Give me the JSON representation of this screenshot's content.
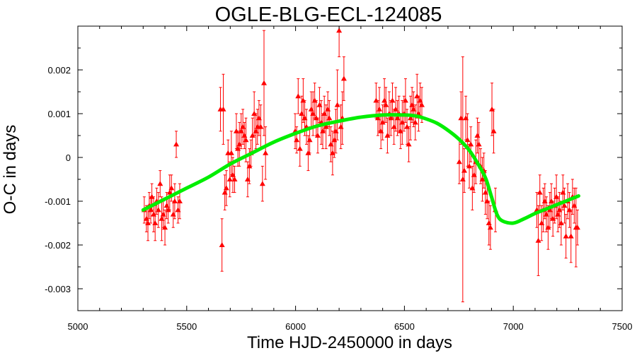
{
  "chart_data": {
    "type": "scatter",
    "title": "OGLE-BLG-ECL-124085",
    "xlabel": "Time HJD-2450000 in days",
    "ylabel": "O-C in days",
    "xlim": [
      5000,
      7500
    ],
    "ylim": [
      -0.0035,
      0.003
    ],
    "xticks": [
      5000,
      5500,
      6000,
      6500,
      7000,
      7500
    ],
    "yticks": [
      -0.003,
      -0.002,
      -0.001,
      0,
      0.001,
      0.002
    ],
    "ytick_labels": [
      "-0.003",
      "-0.002",
      "-0.001",
      "0",
      "0.001",
      "0.002"
    ],
    "grid": false,
    "colors": {
      "points": "#ff0000",
      "fit": "#00ee00",
      "axes": "#000000"
    },
    "series": [
      {
        "type": "scatter-errorbars",
        "marker": "triangle",
        "x": [
          5305,
          5315,
          5322,
          5328,
          5335,
          5340,
          5348,
          5355,
          5362,
          5370,
          5378,
          5385,
          5392,
          5400,
          5408,
          5415,
          5422,
          5430,
          5438,
          5445,
          5452,
          5460,
          5468,
          5655,
          5662,
          5668,
          5675,
          5682,
          5690,
          5698,
          5705,
          5712,
          5720,
          5728,
          5735,
          5742,
          5750,
          5758,
          5765,
          5772,
          5780,
          5788,
          5795,
          5802,
          5810,
          5818,
          5825,
          5832,
          5840,
          5848,
          5855,
          5862,
          5998,
          6005,
          6012,
          6020,
          6028,
          6035,
          6042,
          6050,
          6058,
          6065,
          6072,
          6080,
          6088,
          6095,
          6102,
          6110,
          6118,
          6125,
          6132,
          6140,
          6148,
          6155,
          6162,
          6170,
          6178,
          6185,
          6192,
          6200,
          6208,
          6215,
          6222,
          6370,
          6378,
          6385,
          6392,
          6400,
          6408,
          6415,
          6422,
          6430,
          6438,
          6445,
          6452,
          6460,
          6468,
          6475,
          6482,
          6490,
          6498,
          6505,
          6512,
          6520,
          6528,
          6535,
          6542,
          6550,
          6558,
          6565,
          6572,
          6580,
          6752,
          6760,
          6768,
          6775,
          6782,
          6790,
          6798,
          6805,
          6812,
          6820,
          6828,
          6835,
          6842,
          6850,
          6858,
          6865,
          6872,
          6880,
          6888,
          6895,
          6902,
          6910,
          6918,
          7108,
          7115,
          7122,
          7130,
          7138,
          7145,
          7152,
          7160,
          7168,
          7175,
          7182,
          7190,
          7198,
          7205,
          7212,
          7220,
          7228,
          7235,
          7242,
          7250,
          7258,
          7265,
          7272,
          7280,
          7288,
          7295
        ],
        "y": [
          -0.0012,
          -0.0014,
          -0.0015,
          -0.0011,
          -0.0012,
          -0.0009,
          -0.0013,
          -0.0015,
          -0.001,
          -0.0012,
          -0.0006,
          -0.0014,
          -0.0013,
          -0.0016,
          -0.0011,
          -0.0012,
          -0.0008,
          -0.0007,
          -0.0013,
          -0.001,
          0.0003,
          -0.0012,
          -0.001,
          0.0011,
          -0.002,
          0.0011,
          -0.0008,
          -0.0007,
          0.0001,
          -0.0005,
          0.0001,
          -0.0004,
          -0.0005,
          0.0006,
          0.0002,
          0.0003,
          0.0006,
          0.0007,
          0.0005,
          0.0004,
          -0.0005,
          -0.0002,
          0.0001,
          0.0005,
          0.001,
          0.0006,
          0.0007,
          0.0009,
          0.0007,
          -0.0006,
          0.0017,
          0.0001,
          0.0006,
          0.0004,
          0.0014,
          0.0002,
          0.001,
          0.0013,
          0.0009,
          0.0007,
          0.0001,
          0.0004,
          0.0011,
          0.001,
          0.0013,
          0.0009,
          0.0005,
          0.0012,
          0.0008,
          0.0006,
          0.001,
          0.0007,
          0.0011,
          0.0009,
          0.0003,
          0.0001,
          0.0004,
          0.0006,
          0.0012,
          0.0029,
          0.0007,
          0.0009,
          0.0018,
          0.0013,
          0.0009,
          0.0011,
          0.0006,
          0.0008,
          0.0013,
          0.0012,
          0.0005,
          0.001,
          0.0009,
          0.0013,
          0.0007,
          0.0011,
          0.0009,
          0.001,
          0.0006,
          0.0008,
          0.001,
          0.0013,
          0.0007,
          0.0003,
          0.0009,
          0.0012,
          0.0011,
          0.0008,
          0.0014,
          0.001,
          0.0013,
          0.0012,
          -0.0001,
          0.0009,
          -0.0005,
          -0.0003,
          0.0009,
          0.0004,
          -0.0002,
          0.0003,
          -0.0007,
          -0.0004,
          -0.0001,
          0.0005,
          0.0003,
          -0.0002,
          -0.0005,
          -0.0003,
          -0.0008,
          -0.001,
          -0.0015,
          -0.0016,
          0.0011,
          0.0006,
          -0.0012,
          -0.0012,
          -0.0019,
          -0.0008,
          -0.0015,
          -0.0012,
          -0.001,
          -0.0013,
          -0.0016,
          -0.0012,
          -0.001,
          -0.0014,
          -0.0011,
          -0.0009,
          -0.0013,
          -0.0012,
          -0.0015,
          -0.0008,
          -0.0011,
          -0.0018,
          -0.001,
          -0.0012,
          -0.0018,
          -0.0009,
          -0.0011,
          -0.0016,
          -0.0016
        ],
        "yerr": [
          0.0003,
          0.0003,
          0.0004,
          0.0003,
          0.0003,
          0.0003,
          0.0004,
          0.0004,
          0.0003,
          0.0004,
          0.0003,
          0.0005,
          0.0003,
          0.0004,
          0.0003,
          0.0003,
          0.0004,
          0.0003,
          0.0003,
          0.0004,
          0.0003,
          0.0003,
          0.0004,
          0.0005,
          0.0006,
          0.0008,
          0.0004,
          0.0004,
          0.0003,
          0.0004,
          0.0005,
          0.0004,
          0.0003,
          0.0004,
          0.0004,
          0.0005,
          0.0004,
          0.0004,
          0.0003,
          0.0005,
          0.0004,
          0.0004,
          0.0003,
          0.0004,
          0.0005,
          0.0004,
          0.0004,
          0.0004,
          0.0005,
          0.0004,
          0.0012,
          0.0006,
          0.0004,
          0.0003,
          0.0004,
          0.0004,
          0.0004,
          0.0005,
          0.0004,
          0.0004,
          0.0004,
          0.0003,
          0.0004,
          0.0005,
          0.0004,
          0.0004,
          0.0004,
          0.0004,
          0.0005,
          0.0004,
          0.0004,
          0.0005,
          0.0004,
          0.0004,
          0.0004,
          0.0005,
          0.0004,
          0.0005,
          0.0008,
          0.0006,
          0.0005,
          0.0006,
          0.0005,
          0.0004,
          0.0004,
          0.0005,
          0.0004,
          0.0004,
          0.0005,
          0.0004,
          0.0004,
          0.0005,
          0.0004,
          0.0004,
          0.0004,
          0.0005,
          0.0004,
          0.0004,
          0.0004,
          0.0005,
          0.0004,
          0.0005,
          0.0004,
          0.0004,
          0.0005,
          0.0004,
          0.0004,
          0.0004,
          0.0005,
          0.0004,
          0.0004,
          0.0004,
          0.0005,
          0.0006,
          0.0028,
          0.0005,
          0.0005,
          0.0006,
          0.0005,
          0.0004,
          0.0005,
          0.0004,
          0.0005,
          0.0004,
          0.0005,
          0.0004,
          0.0005,
          0.0004,
          0.0005,
          0.0004,
          0.0005,
          0.0005,
          0.0006,
          0.0005,
          0.0005,
          0.0004,
          0.0008,
          0.0004,
          0.0004,
          0.0005,
          0.0004,
          0.0004,
          0.0005,
          0.0004,
          0.0004,
          0.0004,
          0.0004,
          0.0005,
          0.0004,
          0.0004,
          0.0005,
          0.0004,
          0.0004,
          0.0005,
          0.0004,
          0.0004,
          0.0006,
          0.0004,
          0.0004,
          0.0009,
          0.0004
        ]
      },
      {
        "type": "line",
        "x": [
          5300,
          5400,
          5500,
          5600,
          5700,
          5800,
          5900,
          6000,
          6100,
          6200,
          6300,
          6400,
          6500,
          6550,
          6600,
          6650,
          6700,
          6750,
          6800,
          6850,
          6875,
          6900,
          6925,
          6950,
          7000,
          7050,
          7100,
          7150,
          7200,
          7250,
          7300
        ],
        "y": [
          -0.0012,
          -0.00095,
          -0.0007,
          -0.00045,
          -0.00015,
          0.0001,
          0.00035,
          0.00055,
          0.00072,
          0.00083,
          0.00092,
          0.00097,
          0.00097,
          0.00095,
          0.00088,
          0.00078,
          0.00062,
          0.00042,
          0.00015,
          -0.00025,
          -0.0005,
          -0.0009,
          -0.0013,
          -0.00145,
          -0.0015,
          -0.0014,
          -0.00128,
          -0.00118,
          -0.00108,
          -0.00098,
          -0.00088
        ]
      }
    ]
  }
}
